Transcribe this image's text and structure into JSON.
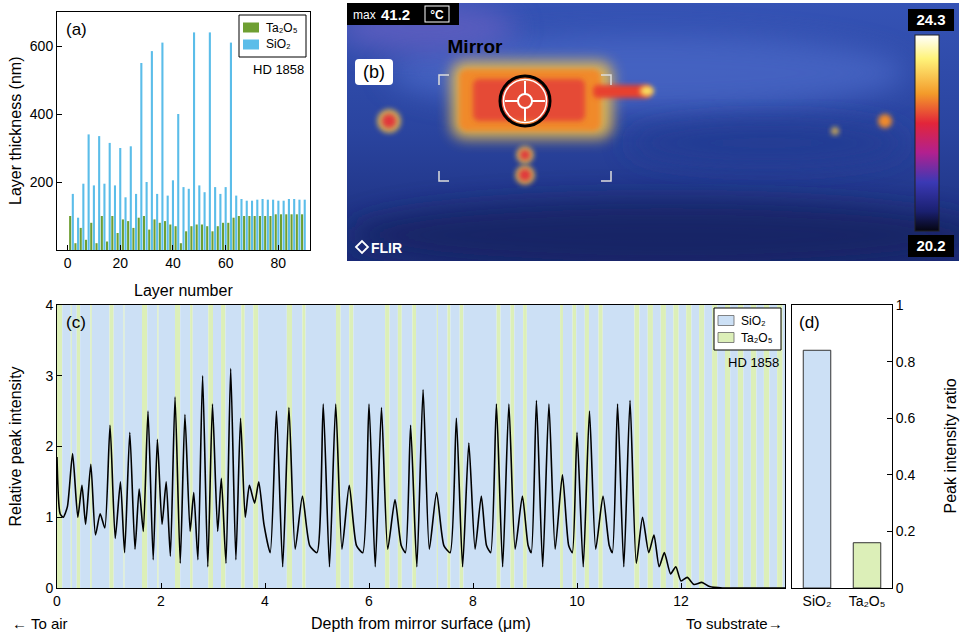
{
  "chart_data": [
    {
      "panel": "(a)",
      "type": "bar",
      "x_label": "Layer number",
      "y_label": "Layer thickness (nm)",
      "annotations": {
        "sample": "HD 1858"
      },
      "series": [
        {
          "name": "Ta₂O₅",
          "color": "#6e9f32",
          "x": [
            1,
            3,
            5,
            7,
            9,
            11,
            13,
            15,
            17,
            19,
            21,
            23,
            25,
            27,
            29,
            31,
            33,
            35,
            37,
            39,
            41,
            43,
            45,
            47,
            49,
            51,
            53,
            55,
            57,
            59,
            61,
            63,
            65,
            67,
            69,
            71,
            73,
            75,
            77,
            79,
            81,
            83,
            85,
            87,
            89
          ],
          "values": [
            100,
            20,
            65,
            30,
            80,
            20,
            100,
            25,
            100,
            50,
            90,
            85,
            65,
            95,
            100,
            60,
            90,
            80,
            85,
            75,
            70,
            20,
            55,
            70,
            75,
            75,
            70,
            55,
            70,
            80,
            80,
            95,
            100,
            100,
            100,
            100,
            100,
            100,
            100,
            105,
            105,
            105,
            105,
            105,
            105
          ]
        },
        {
          "name": "SiO₂",
          "color": "#5bbde9",
          "x": [
            2,
            4,
            6,
            8,
            10,
            12,
            14,
            16,
            18,
            20,
            22,
            24,
            26,
            28,
            30,
            32,
            34,
            36,
            38,
            40,
            42,
            44,
            46,
            48,
            50,
            52,
            54,
            56,
            58,
            60,
            62,
            64,
            66,
            68,
            70,
            72,
            74,
            76,
            78,
            80,
            82,
            84,
            86,
            88,
            90
          ],
          "values": [
            165,
            95,
            195,
            340,
            190,
            335,
            195,
            315,
            190,
            300,
            155,
            305,
            165,
            550,
            200,
            585,
            165,
            610,
            160,
            205,
            400,
            185,
            180,
            640,
            190,
            170,
            640,
            185,
            165,
            185,
            610,
            160,
            150,
            145,
            145,
            148,
            150,
            148,
            148,
            145,
            145,
            150,
            150,
            148,
            148
          ]
        }
      ],
      "xlim": [
        -4,
        92
      ],
      "xticks": [
        0,
        20,
        40,
        60,
        80
      ],
      "ylim": [
        0,
        700
      ],
      "yticks": [
        200,
        400,
        600
      ],
      "legend": "top right",
      "grid": false
    },
    {
      "panel": "(c)",
      "type": "line",
      "x_label": "Depth from mirror surface (μm)",
      "y_label": "Relative peak intensity",
      "annotations": {
        "sample": "HD 1858",
        "left": "← To air",
        "right": "To substrate→"
      },
      "color": "#000000",
      "x": [
        0,
        0.06,
        0.12,
        0.2,
        0.3,
        0.4,
        0.48,
        0.55,
        0.65,
        0.74,
        0.83,
        0.92,
        1.02,
        1.12,
        1.22,
        1.3,
        1.4,
        1.5,
        1.58,
        1.66,
        1.75,
        1.85,
        1.93,
        2.02,
        2.1,
        2.18,
        2.27,
        2.37,
        2.46,
        2.56,
        2.63,
        2.71,
        2.8,
        2.9,
        2.99,
        3.09,
        3.16,
        3.25,
        3.34,
        3.44,
        3.53,
        3.62,
        3.7,
        3.8,
        3.88,
        3.98,
        4.1,
        4.22,
        4.34,
        4.46,
        4.58,
        4.72,
        4.86,
        5,
        5.12,
        5.24,
        5.36,
        5.48,
        5.62,
        5.76,
        5.88,
        6,
        6.12,
        6.24,
        6.36,
        6.5,
        6.62,
        6.7,
        6.8,
        6.92,
        7.04,
        7.16,
        7.3,
        7.44,
        7.56,
        7.68,
        7.8,
        7.92,
        8.04,
        8.16,
        8.26,
        8.34,
        8.45,
        8.57,
        8.69,
        8.81,
        8.95,
        9.06,
        9.12,
        9.22,
        9.34,
        9.46,
        9.58,
        9.72,
        9.84,
        9.91,
        10,
        10.12,
        10.24,
        10.36,
        10.5,
        10.62,
        10.68,
        10.78,
        10.9,
        11.02,
        11.14,
        11.26,
        11.38,
        11.48,
        11.58,
        11.68,
        11.8,
        11.9,
        12,
        12.12,
        12.25,
        12.4,
        12.55,
        12.8,
        13.2,
        14
      ],
      "values": [
        1.85,
        1.05,
        1,
        1.15,
        1.9,
        1,
        1.45,
        0.9,
        1.75,
        0.75,
        1.05,
        0.85,
        2.3,
        0.7,
        1.5,
        0.5,
        2.2,
        0.55,
        1.4,
        0.8,
        2.5,
        0.4,
        2.1,
        0.9,
        1.5,
        0.45,
        2.7,
        0.35,
        2.45,
        0.8,
        1.35,
        0.4,
        3,
        0.3,
        2.6,
        0.8,
        1.55,
        0.35,
        3.1,
        0.4,
        2.4,
        1,
        1.45,
        1.2,
        1.5,
        0.9,
        0.5,
        2.5,
        0.3,
        2.55,
        0.55,
        1.3,
        0.6,
        0.5,
        2.6,
        0.3,
        2.6,
        0.55,
        1.45,
        0.6,
        0.5,
        2.6,
        0.3,
        2.55,
        0.55,
        1.25,
        0.6,
        0.5,
        2.3,
        0.3,
        2.8,
        0.55,
        1.35,
        0.6,
        0.5,
        2.4,
        0.3,
        2.05,
        0.55,
        1.3,
        0.6,
        0.5,
        2.6,
        0.3,
        2.6,
        0.55,
        1.3,
        0.6,
        0.5,
        2.65,
        0.3,
        2.6,
        0.55,
        1.6,
        0.6,
        0.5,
        2.2,
        0.3,
        2.5,
        0.55,
        1.3,
        0.6,
        0.5,
        2.6,
        0.3,
        2.65,
        0.35,
        1,
        0.5,
        0.75,
        0.3,
        0.5,
        0.2,
        0.3,
        0.1,
        0.15,
        0.05,
        0.08,
        0.02,
        0,
        0,
        0
      ],
      "layers": [
        {
          "name": "SiO₂",
          "color": "#cce0f5"
        },
        {
          "name": "Ta₂O₅",
          "color": "#dcefb8"
        }
      ],
      "xlim": [
        0,
        14
      ],
      "xticks": [
        0,
        2,
        4,
        6,
        8,
        10,
        12
      ],
      "ylim": [
        0,
        4
      ],
      "yticks": [
        0,
        1,
        2,
        3,
        4
      ],
      "legend": "top right",
      "grid": false
    },
    {
      "panel": "(d)",
      "type": "bar",
      "y_label": "Peak intensity ratio",
      "categories": [
        "SiO₂",
        "Ta₂O₅"
      ],
      "values": [
        0.84,
        0.16
      ],
      "colors": [
        "#cce0f5",
        "#dcefb8"
      ],
      "ylim": [
        0,
        1
      ],
      "yticks": [
        0,
        0.2,
        0.4,
        0.6,
        0.8,
        1
      ],
      "grid": false
    }
  ],
  "image": {
    "panel": "(b)",
    "max_label": "max",
    "max_value": 41.2,
    "unit": "°C",
    "label": "Mirror",
    "scale_max": 24.3,
    "scale_min": 20.2,
    "brand": "FLIR"
  }
}
